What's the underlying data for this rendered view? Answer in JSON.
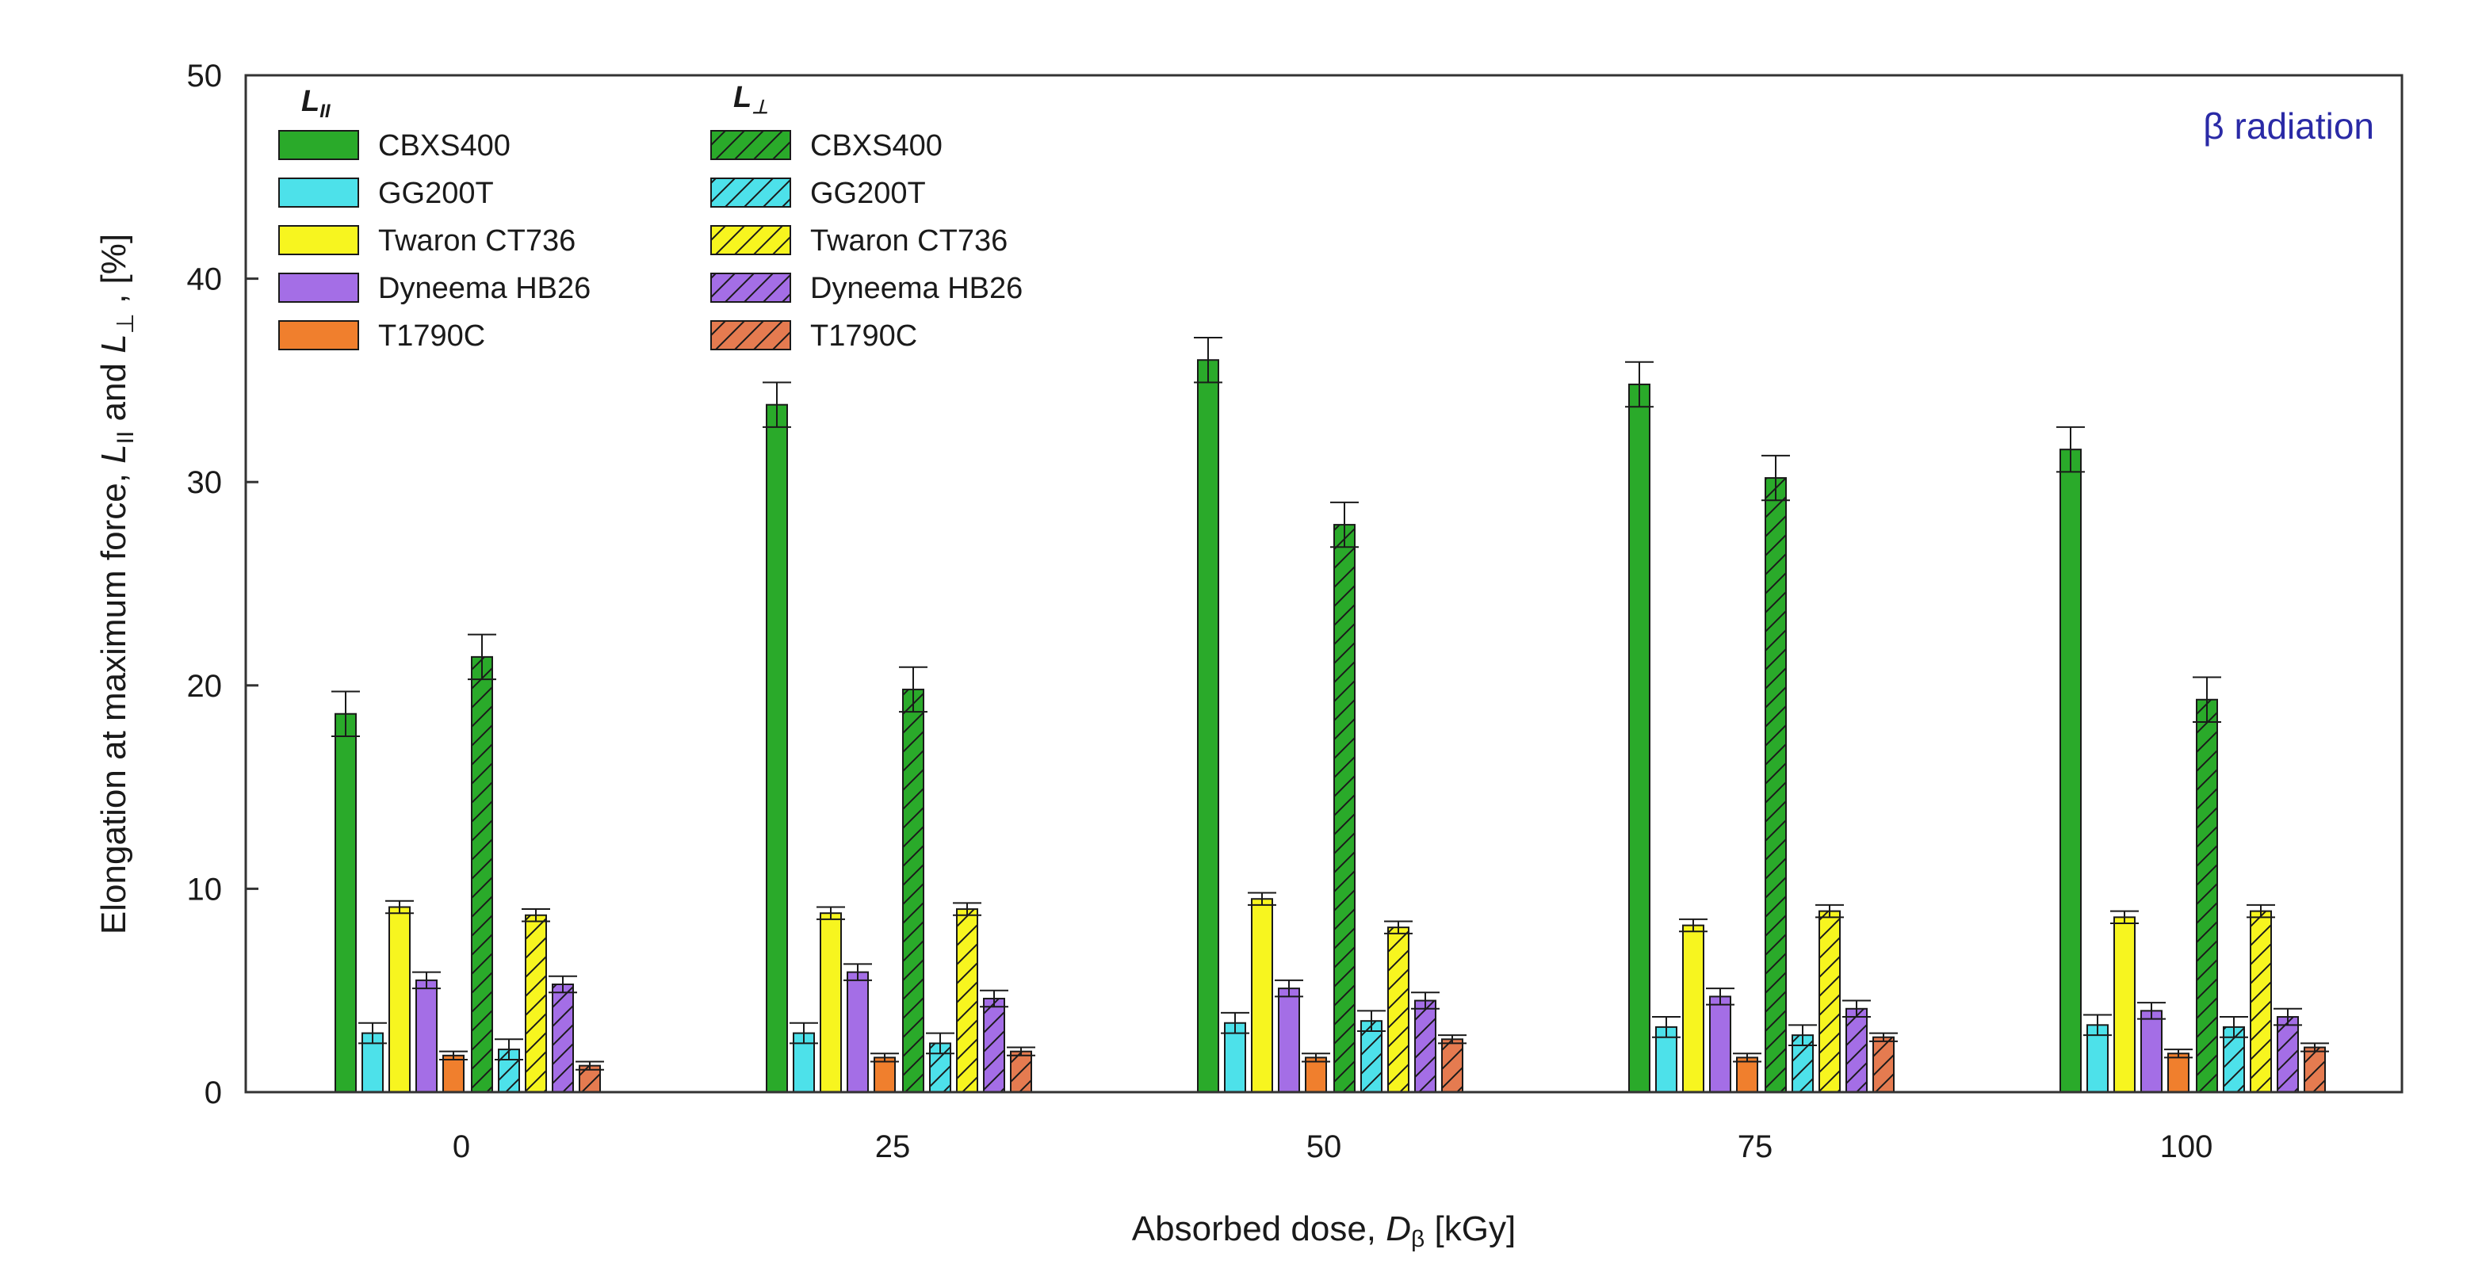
{
  "chart_data": {
    "type": "bar",
    "title": "",
    "annotation": "β radiation",
    "xlabel": "Absorbed dose, Dβ [kGy]",
    "xlabel_parts": {
      "prefix": "Absorbed dose, ",
      "symbol": "D",
      "subscript": "β",
      "suffix": " [kGy]"
    },
    "ylabel": "Elongation at maximum force, L∥ and L⊥ , [%]",
    "ylabel_parts": {
      "prefix": "Elongation at maximum force, ",
      "sym1": "L",
      "sub1": "II",
      "mid": " and ",
      "sym2": "L",
      "sub2": "⊥",
      "suffix": " , [%]"
    },
    "ylim": [
      0,
      50
    ],
    "yticks": [
      0,
      10,
      20,
      30,
      40,
      50
    ],
    "categories": [
      "0",
      "25",
      "50",
      "75",
      "100"
    ],
    "groups": [
      {
        "name": "L∥",
        "label_sym": "L",
        "label_sub": "II",
        "hatch": false
      },
      {
        "name": "L⊥",
        "label_sym": "L",
        "label_sub": "⊥",
        "hatch": true
      }
    ],
    "series": [
      {
        "name": "CBXS400",
        "group": "L∥",
        "color": "#2aaa2a",
        "values": [
          18.6,
          33.8,
          36.0,
          34.8,
          31.6
        ],
        "errors": [
          1.1,
          1.1,
          1.1,
          1.1,
          1.1
        ]
      },
      {
        "name": "GG200T",
        "group": "L∥",
        "color": "#4de1ea",
        "values": [
          2.9,
          2.9,
          3.4,
          3.2,
          3.3
        ],
        "errors": [
          0.5,
          0.5,
          0.5,
          0.5,
          0.5
        ]
      },
      {
        "name": "Twaron CT736",
        "group": "L∥",
        "color": "#f7f51f",
        "values": [
          9.1,
          8.8,
          9.5,
          8.2,
          8.6
        ],
        "errors": [
          0.3,
          0.3,
          0.3,
          0.3,
          0.3
        ]
      },
      {
        "name": "Dyneema HB26",
        "group": "L∥",
        "color": "#a46ee6",
        "values": [
          5.5,
          5.9,
          5.1,
          4.7,
          4.0
        ],
        "errors": [
          0.4,
          0.4,
          0.4,
          0.4,
          0.4
        ]
      },
      {
        "name": "T1790C",
        "group": "L∥",
        "color": "#f07f2d",
        "values": [
          1.8,
          1.7,
          1.7,
          1.7,
          1.9
        ],
        "errors": [
          0.2,
          0.2,
          0.2,
          0.2,
          0.2
        ]
      },
      {
        "name": "CBXS400",
        "group": "L⊥",
        "color": "#2aaa2a",
        "values": [
          21.4,
          19.8,
          27.9,
          30.2,
          19.3
        ],
        "errors": [
          1.1,
          1.1,
          1.1,
          1.1,
          1.1
        ]
      },
      {
        "name": "GG200T",
        "group": "L⊥",
        "color": "#4de1ea",
        "values": [
          2.1,
          2.4,
          3.5,
          2.8,
          3.2
        ],
        "errors": [
          0.5,
          0.5,
          0.5,
          0.5,
          0.5
        ]
      },
      {
        "name": "Twaron CT736",
        "group": "L⊥",
        "color": "#f7f51f",
        "values": [
          8.7,
          9.0,
          8.1,
          8.9,
          8.9
        ],
        "errors": [
          0.3,
          0.3,
          0.3,
          0.3,
          0.3
        ]
      },
      {
        "name": "Dyneema HB26",
        "group": "L⊥",
        "color": "#a46ee6",
        "values": [
          5.3,
          4.6,
          4.5,
          4.1,
          3.7
        ],
        "errors": [
          0.4,
          0.4,
          0.4,
          0.4,
          0.4
        ]
      },
      {
        "name": "T1790C",
        "group": "L⊥",
        "color": "#e57b50",
        "values": [
          1.3,
          2.0,
          2.6,
          2.7,
          2.2
        ],
        "errors": [
          0.2,
          0.2,
          0.2,
          0.2,
          0.2
        ]
      }
    ],
    "legend_placement": "top-left"
  }
}
